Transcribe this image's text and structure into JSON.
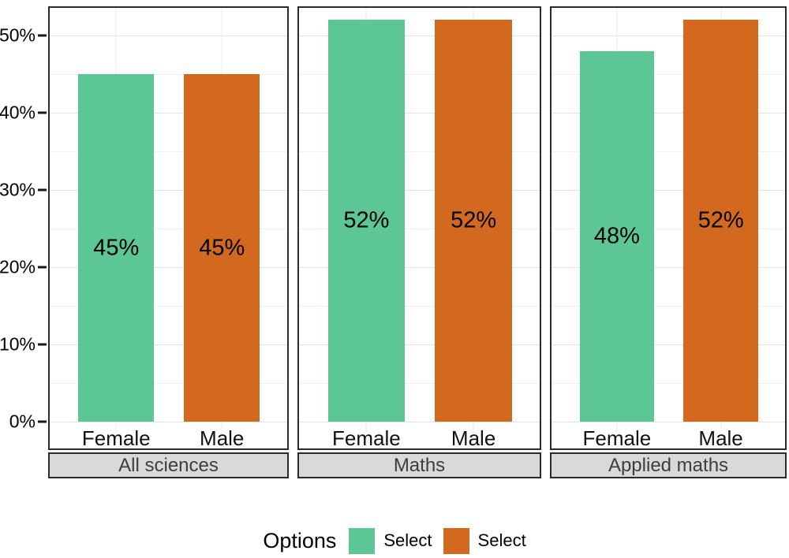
{
  "colors": {
    "female_bar": "#5cc795",
    "male_bar": "#d2691e",
    "panel_border": "#2b2b2b",
    "strip_background": "#d9d9d9",
    "strip_text": "#3d3d3d",
    "grid_major": "#e3e3e3",
    "grid_minor": "#f1f1f1",
    "label_text": "#000000"
  },
  "chart_data": {
    "type": "bar",
    "title": "",
    "xlabel": "",
    "ylabel": "",
    "y_ticks": [
      "0%",
      "10%",
      "20%",
      "30%",
      "40%",
      "50%"
    ],
    "ylim": [
      0,
      53.5
    ],
    "grid": true,
    "facets": [
      {
        "label": "All sciences",
        "categories": [
          "Female",
          "Male"
        ],
        "values": [
          45,
          45
        ],
        "value_labels": [
          "45%",
          "45%"
        ]
      },
      {
        "label": "Maths",
        "categories": [
          "Female",
          "Male"
        ],
        "values": [
          52,
          52
        ],
        "value_labels": [
          "52%",
          "52%"
        ]
      },
      {
        "label": "Applied maths",
        "categories": [
          "Female",
          "Male"
        ],
        "values": [
          48,
          52
        ],
        "value_labels": [
          "48%",
          "52%"
        ]
      }
    ],
    "bar_colors": [
      "#5cc795",
      "#d2691e"
    ],
    "legend": {
      "title": "Options",
      "position": "bottom",
      "entries": [
        {
          "label": "Select",
          "color": "#5cc795"
        },
        {
          "label": "Select",
          "color": "#d2691e"
        }
      ]
    }
  }
}
